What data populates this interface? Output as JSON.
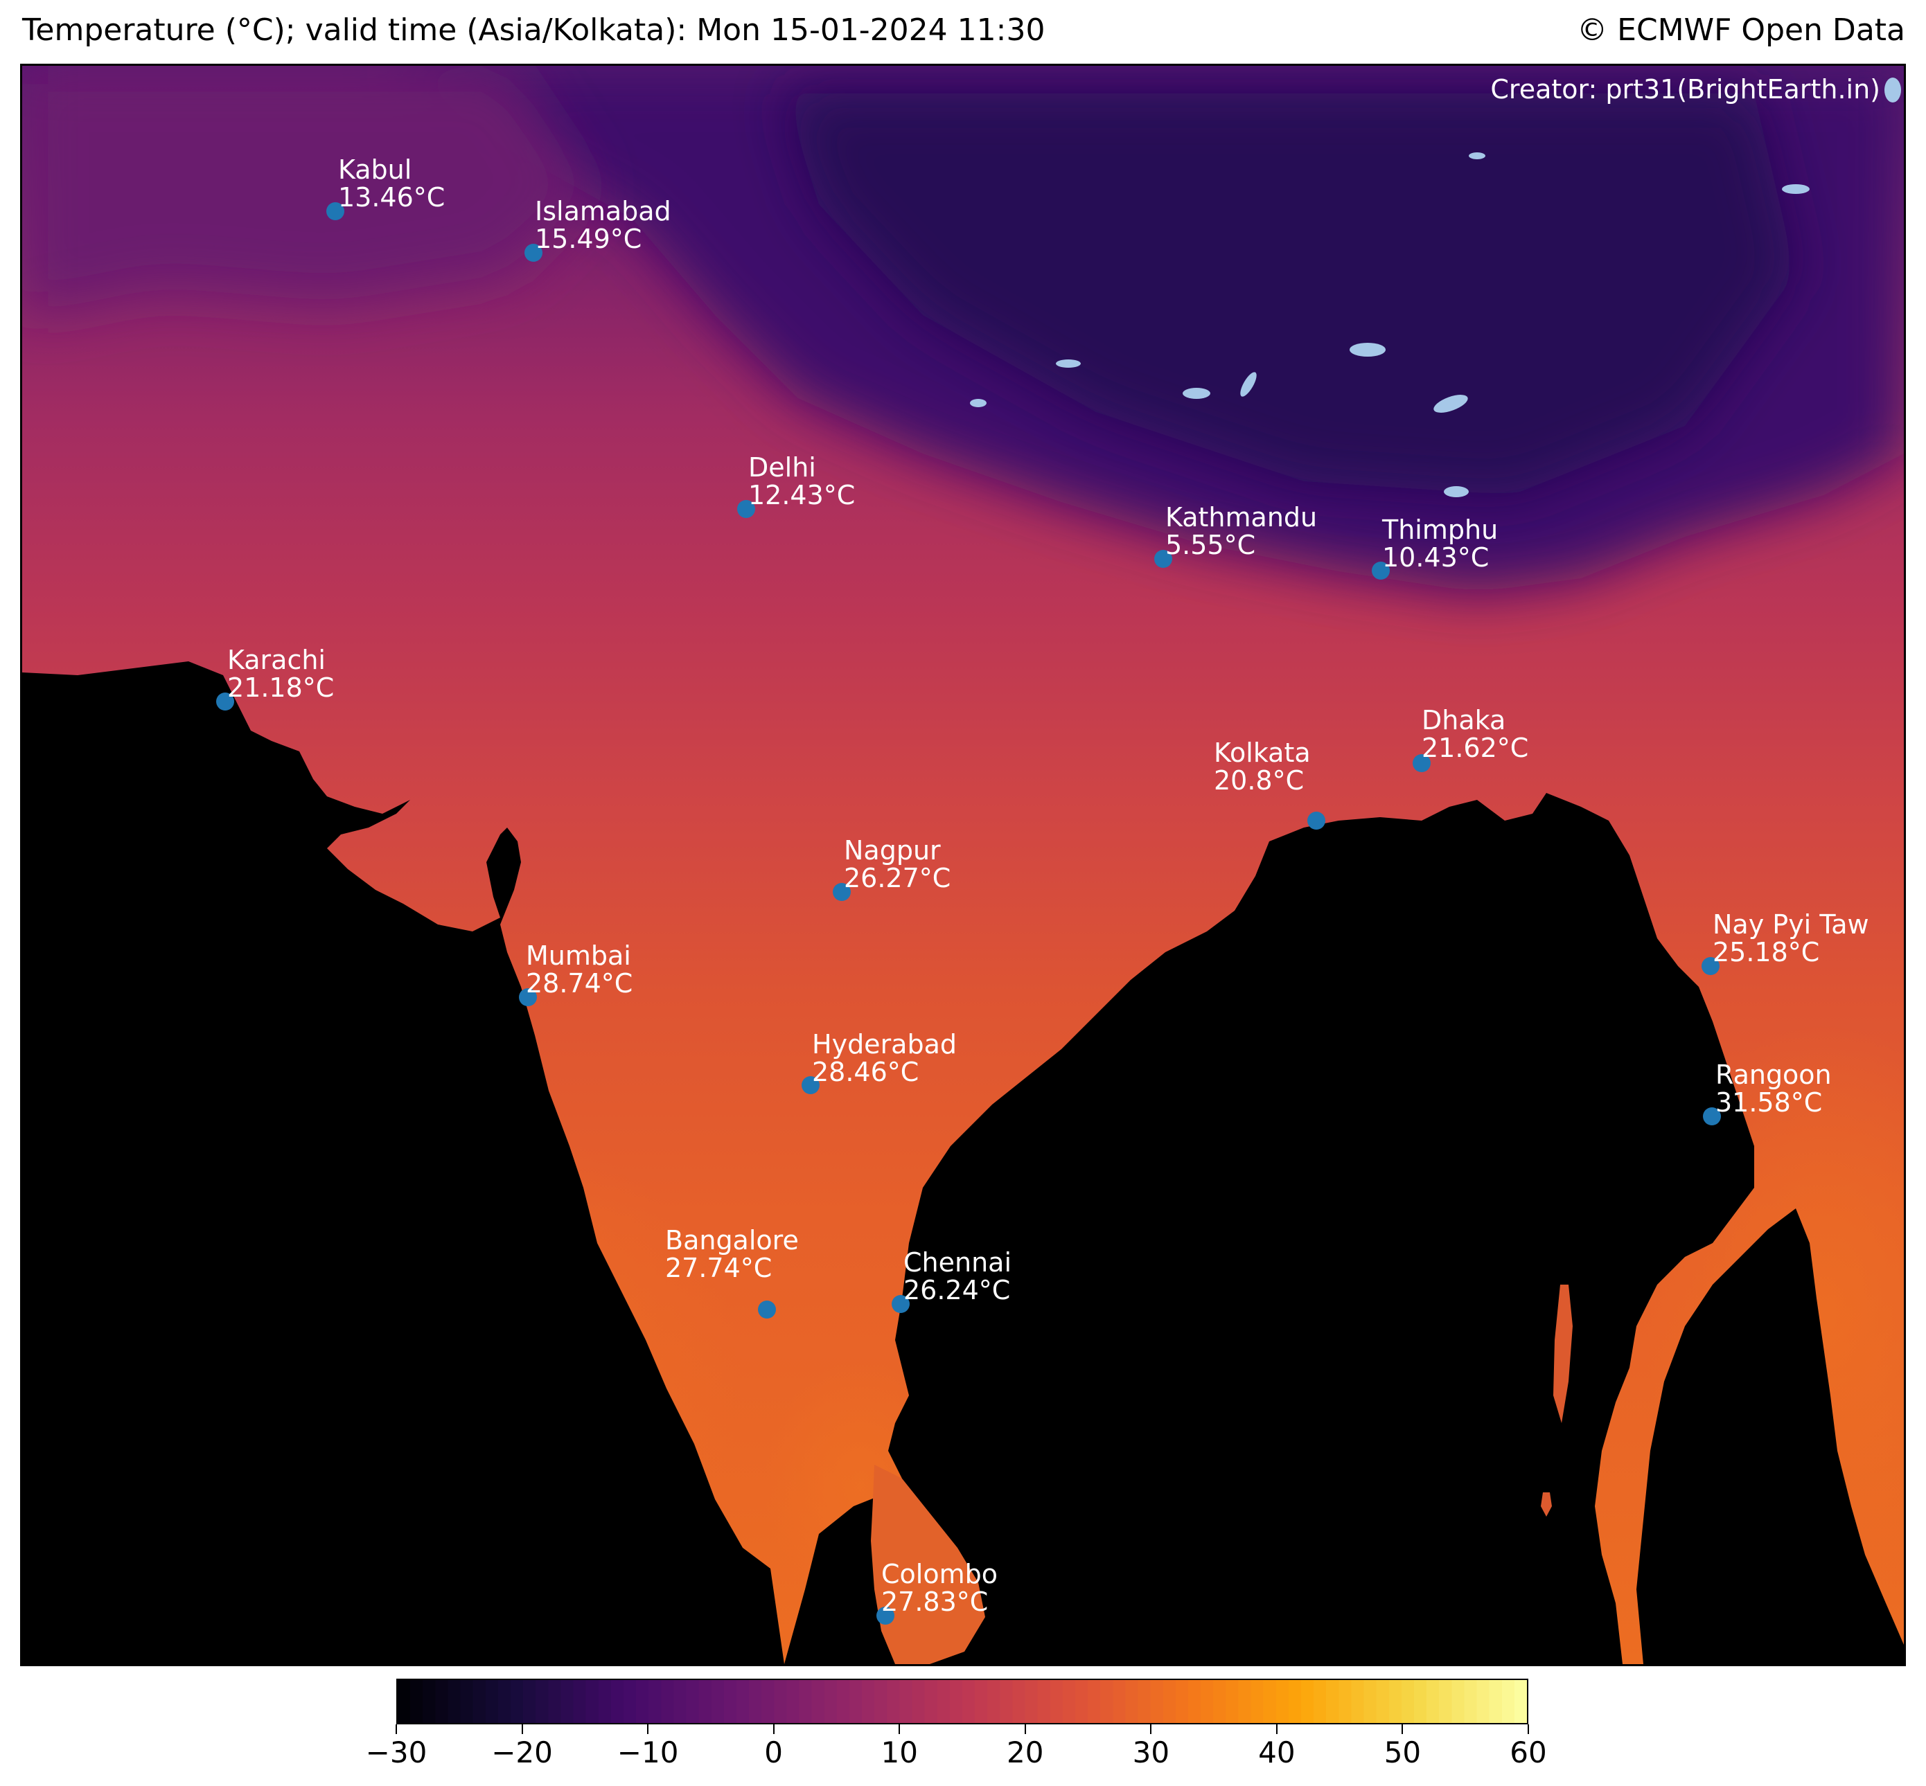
{
  "header": {
    "title": "Temperature (°C); valid time (Asia/Kolkata): Mon 15-01-2024 11:30",
    "attribution": "© ECMWF Open Data"
  },
  "map": {
    "creator": "Creator: prt31(BrightEarth.in)",
    "colors": {
      "ocean": "#000000",
      "lakes": "#a6c8e8",
      "marker": "#1f77b4",
      "label": "#ffffff"
    },
    "cities": [
      {
        "name": "Kabul",
        "temp": "13.46°C"
      },
      {
        "name": "Islamabad",
        "temp": "15.49°C"
      },
      {
        "name": "Delhi",
        "temp": "12.43°C"
      },
      {
        "name": "Kathmandu",
        "temp": "5.55°C"
      },
      {
        "name": "Thimphu",
        "temp": "10.43°C"
      },
      {
        "name": "Karachi",
        "temp": "21.18°C"
      },
      {
        "name": "Dhaka",
        "temp": "21.62°C"
      },
      {
        "name": "Kolkata",
        "temp": "20.8°C"
      },
      {
        "name": "Nagpur",
        "temp": "26.27°C"
      },
      {
        "name": "Nay Pyi Taw",
        "temp": "25.18°C"
      },
      {
        "name": "Mumbai",
        "temp": "28.74°C"
      },
      {
        "name": "Hyderabad",
        "temp": "28.46°C"
      },
      {
        "name": "Rangoon",
        "temp": "31.58°C"
      },
      {
        "name": "Bangalore",
        "temp": "27.74°C"
      },
      {
        "name": "Chennai",
        "temp": "26.24°C"
      },
      {
        "name": "Colombo",
        "temp": "27.83°C"
      }
    ]
  },
  "colorbar": {
    "colormap": "inferno",
    "range": [
      -30,
      60
    ],
    "ticks": [
      "−30",
      "−20",
      "−10",
      "0",
      "10",
      "20",
      "30",
      "40",
      "50",
      "60"
    ]
  }
}
